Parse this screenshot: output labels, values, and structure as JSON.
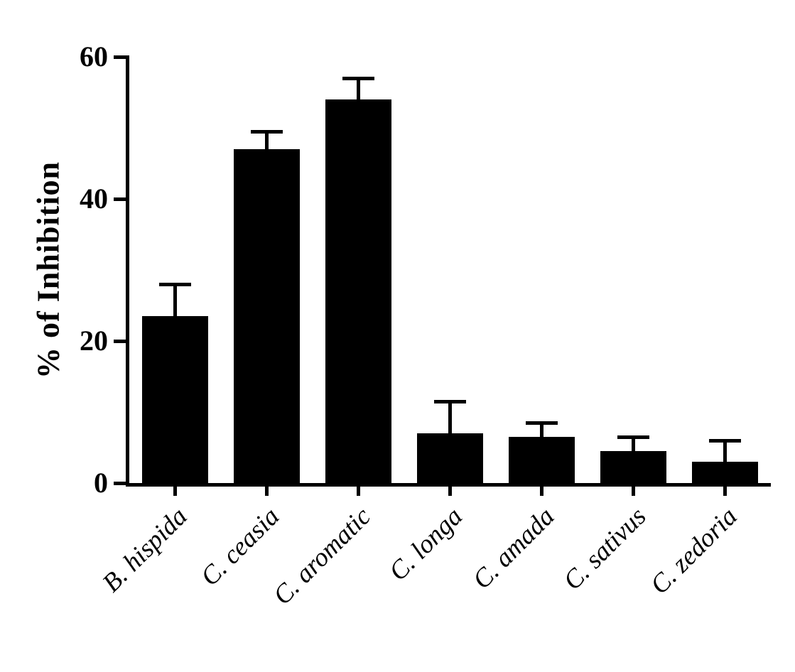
{
  "chart_data": {
    "type": "bar",
    "title": "",
    "xlabel": "",
    "ylabel": "% of Inhibition",
    "categories": [
      "B. hispida",
      "C. ceasia",
      "C. aromatic",
      "C. longa",
      "C. amada",
      "C. sativus",
      "C. zedoria"
    ],
    "values": [
      23.5,
      47,
      54,
      7,
      6.5,
      4.5,
      3
    ],
    "errors": [
      4.5,
      2.5,
      3,
      4.5,
      2,
      2,
      3
    ],
    "error_bars": "upper",
    "ylim": [
      0,
      60
    ],
    "yticks": [
      0,
      20,
      40,
      60
    ],
    "bar_color": "#000000",
    "axis_color": "#000000",
    "background": "#ffffff",
    "grid": false,
    "legend": "none"
  }
}
